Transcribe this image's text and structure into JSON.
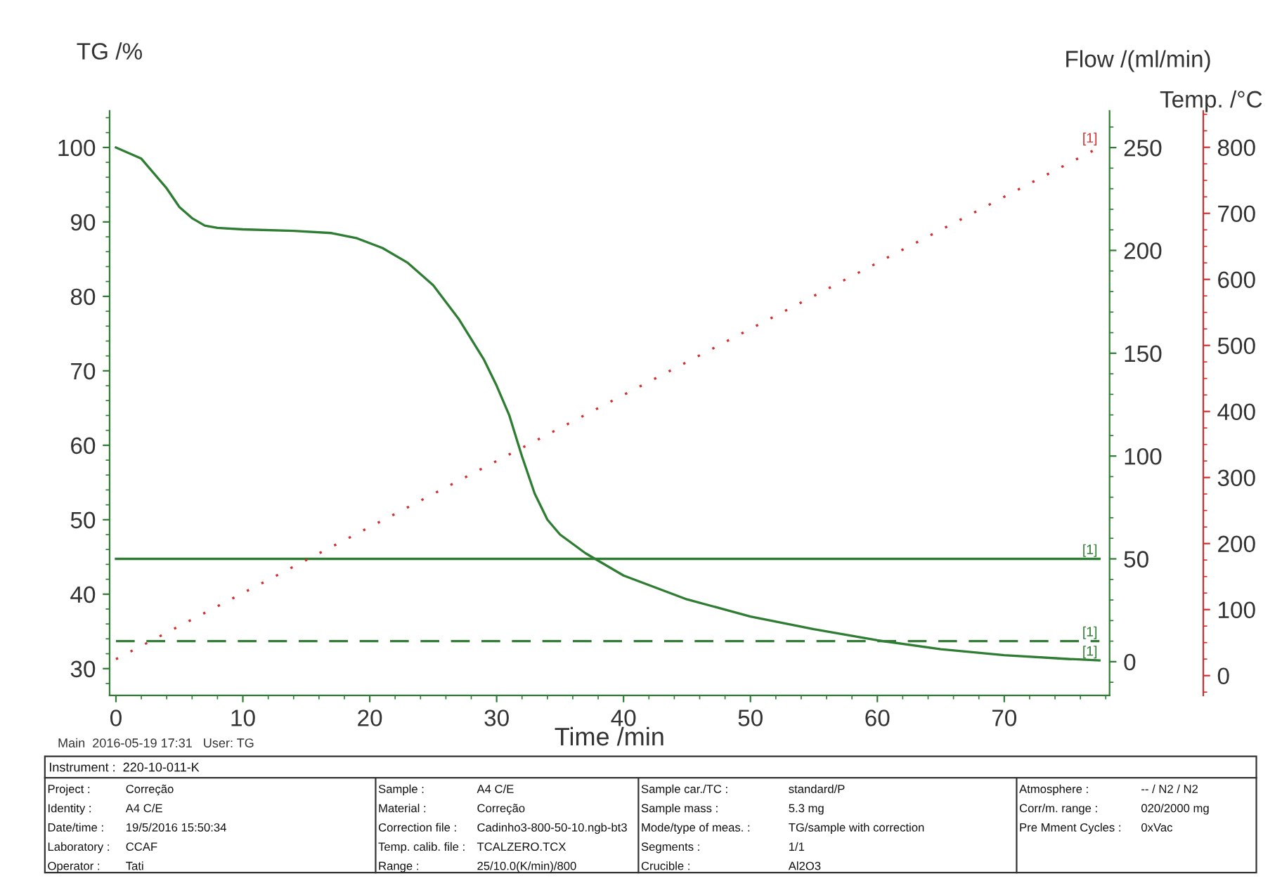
{
  "chart_data": {
    "type": "line",
    "xlabel": "Time /min",
    "ylabel": "TG /%",
    "y2label": "Flow /(ml/min)",
    "y3label": "Temp. /°C",
    "xlim": [
      -0.5,
      78.3
    ],
    "xticks": [
      0,
      10,
      20,
      30,
      40,
      50,
      60,
      70
    ],
    "ylim": [
      26.4,
      104.9
    ],
    "yticks": [
      30,
      40,
      50,
      60,
      70,
      80,
      90,
      100
    ],
    "y2lim": [
      -16.4,
      267.8
    ],
    "y2ticks": [
      0,
      50,
      100,
      150,
      200,
      250
    ],
    "y3lim": [
      -30,
      855
    ],
    "y3ticks": [
      0,
      100,
      200,
      300,
      400,
      500,
      600,
      700,
      800
    ],
    "grid": false,
    "legend": false,
    "series": [
      {
        "color": "#2e7d32",
        "line_style": "solid",
        "x": [
          0,
          2,
          4,
          5,
          6,
          7,
          8,
          10,
          14,
          17,
          19,
          21,
          23,
          25,
          27,
          29,
          30,
          31,
          32,
          33,
          34,
          35,
          37,
          40,
          45,
          50,
          55,
          60,
          65,
          70,
          75,
          77.5
        ],
        "values": [
          100,
          98.5,
          94.5,
          92,
          90.5,
          89.5,
          89.2,
          89,
          88.8,
          88.5,
          87.8,
          86.5,
          84.5,
          81.5,
          77,
          71.5,
          68,
          64,
          58.5,
          53.5,
          50,
          48,
          45.5,
          42.5,
          39.3,
          37,
          35.3,
          33.8,
          32.6,
          31.8,
          31.3,
          31.1
        ]
      },
      {
        "color": "#2e7d32",
        "line_style": "solid",
        "axis": "y2",
        "x": [
          0,
          77.5
        ],
        "values": [
          50,
          50
        ]
      },
      {
        "color": "#2e7d32",
        "line_style": "dashed",
        "axis": "y2",
        "x": [
          0,
          77.5
        ],
        "values": [
          10,
          10
        ]
      },
      {
        "color": "#d32f2f",
        "line_style": "dotted",
        "axis": "y3",
        "x": [
          0,
          77.5
        ],
        "values": [
          25,
          800
        ]
      }
    ],
    "annotations": [
      "[1]",
      "[1]",
      "[1]",
      "[1]",
      "Main  2016-05-19 17:31   User: TG",
      "Instrument :  220-10-011-K",
      "Project :",
      "Correção",
      "Identity :",
      "A4 C/E",
      "Date/time :",
      "19/5/2016 15:50:34",
      "Laboratory :",
      "CCAF",
      "Operator :",
      "Tati",
      "Sample :",
      "A4 C/E",
      "Material :",
      "Correção",
      "Correction file :",
      "Cadinho3-800-50-10.ngb-bt3",
      "Temp. calib. file :",
      "TCALZERO.TCX",
      "Range :",
      "25/10.0(K/min)/800",
      "Sample car./TC :",
      "standard/P",
      "Sample mass :",
      "5.3 mg",
      "Mode/type of meas. :",
      "TG/sample with correction",
      "Segments :",
      "1/1",
      "Crucible :",
      "Al2O3",
      "Atmosphere :",
      "-- / N2 / N2",
      "Corr/m. range :",
      "020/2000 mg",
      "Pre Mment Cycles :",
      "0xVac"
    ]
  }
}
